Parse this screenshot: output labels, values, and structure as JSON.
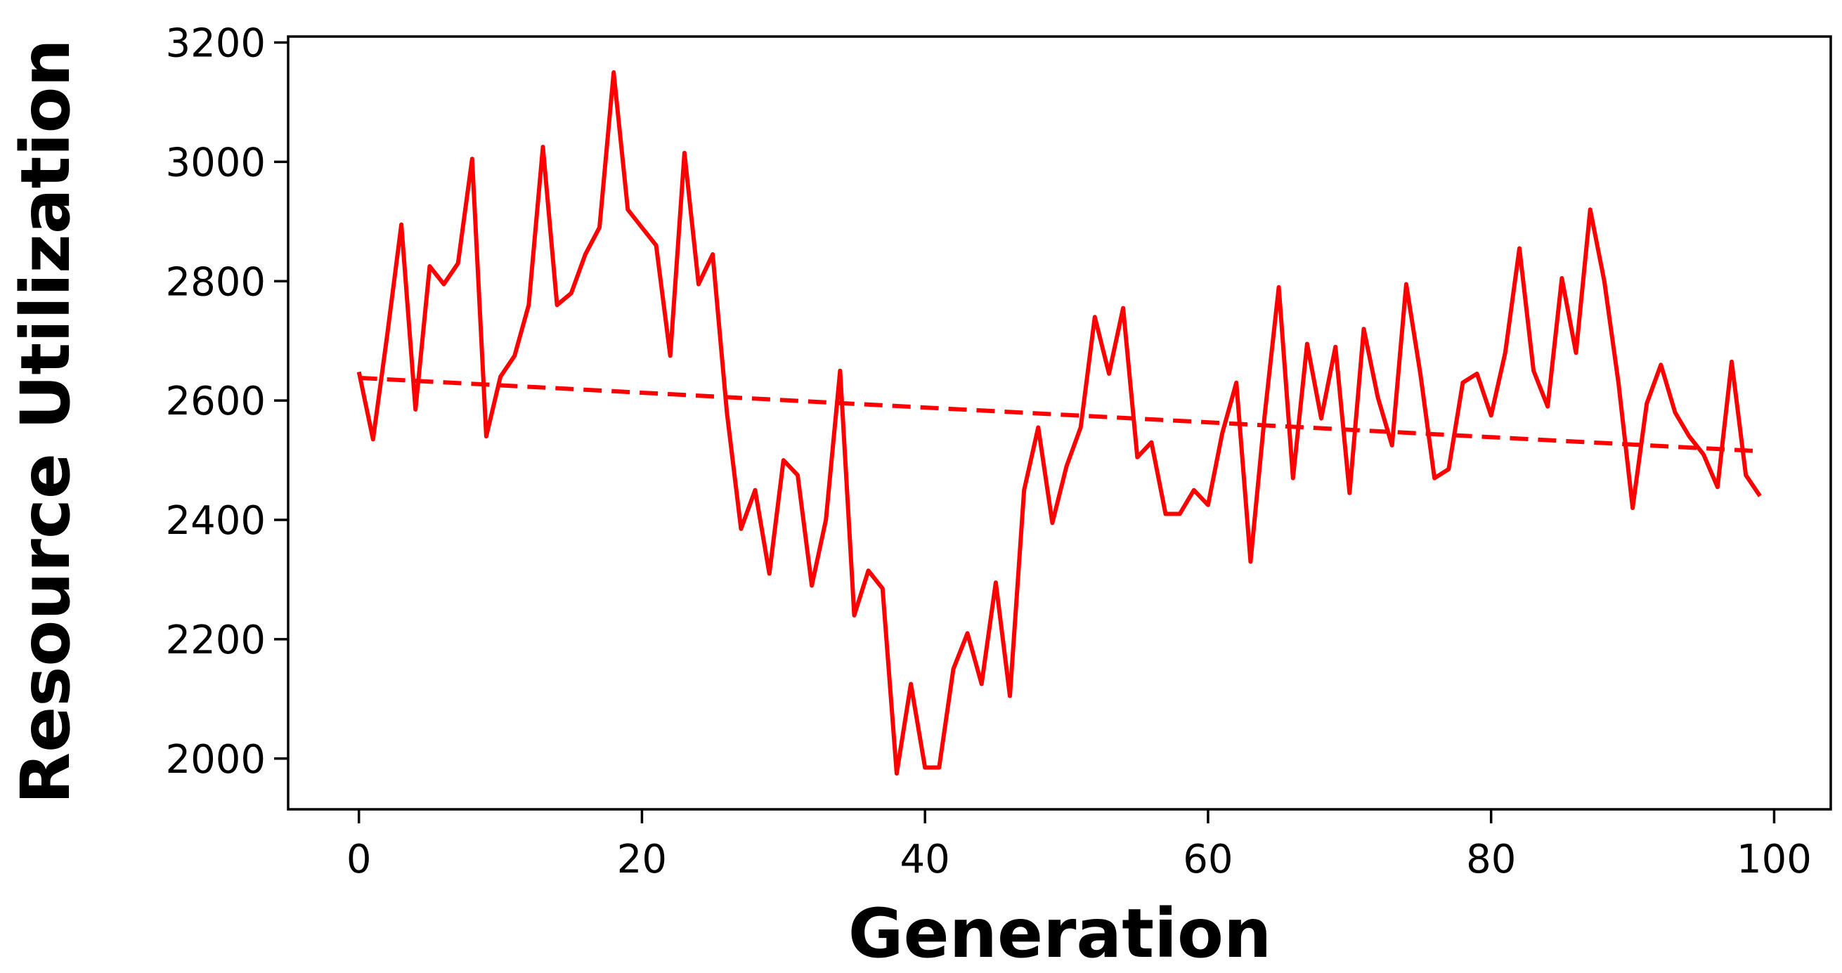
{
  "chart_data": {
    "type": "line",
    "title": "",
    "xlabel": "Generation",
    "ylabel": "Resource Utilization",
    "xlim": [
      -5,
      104
    ],
    "ylim": [
      1915,
      3210
    ],
    "x_ticks": [
      0,
      20,
      40,
      60,
      80,
      100
    ],
    "y_ticks": [
      2000,
      2200,
      2400,
      2600,
      2800,
      3000,
      3200
    ],
    "grid": false,
    "legend": "none",
    "x": [
      0,
      1,
      2,
      3,
      4,
      5,
      6,
      7,
      8,
      9,
      10,
      11,
      12,
      13,
      14,
      15,
      16,
      17,
      18,
      19,
      20,
      21,
      22,
      23,
      24,
      25,
      26,
      27,
      28,
      29,
      30,
      31,
      32,
      33,
      34,
      35,
      36,
      37,
      38,
      39,
      40,
      41,
      42,
      43,
      44,
      45,
      46,
      47,
      48,
      49,
      50,
      51,
      52,
      53,
      54,
      55,
      56,
      57,
      58,
      59,
      60,
      61,
      62,
      63,
      64,
      65,
      66,
      67,
      68,
      69,
      70,
      71,
      72,
      73,
      74,
      75,
      76,
      77,
      78,
      79,
      80,
      81,
      82,
      83,
      84,
      85,
      86,
      87,
      88,
      89,
      90,
      91,
      92,
      93,
      94,
      95,
      96,
      97,
      98,
      99
    ],
    "series": [
      {
        "style": "solid",
        "color": "#ff0000",
        "values": [
          2648,
          2535,
          2710,
          2895,
          2585,
          2825,
          2795,
          2830,
          3005,
          2540,
          2640,
          2675,
          2760,
          3025,
          2760,
          2780,
          2845,
          2890,
          3150,
          2920,
          2890,
          2860,
          2675,
          3015,
          2795,
          2845,
          2580,
          2385,
          2450,
          2310,
          2500,
          2475,
          2290,
          2400,
          2650,
          2240,
          2315,
          2285,
          1975,
          2125,
          1985,
          1985,
          2150,
          2210,
          2125,
          2295,
          2105,
          2450,
          2555,
          2395,
          2490,
          2555,
          2740,
          2645,
          2755,
          2505,
          2530,
          2410,
          2410,
          2450,
          2425,
          2545,
          2630,
          2330,
          2575,
          2790,
          2470,
          2695,
          2570,
          2690,
          2445,
          2720,
          2605,
          2525,
          2795,
          2645,
          2470,
          2485,
          2630,
          2645,
          2575,
          2680,
          2855,
          2650,
          2590,
          2805,
          2680,
          2920,
          2800,
          2630,
          2420,
          2595,
          2660,
          2580,
          2540,
          2510,
          2455,
          2665,
          2475,
          2440
        ]
      },
      {
        "style": "dashed",
        "color": "#ff0000",
        "values_from_to": [
          [
            0,
            2638
          ],
          [
            99,
            2515
          ]
        ]
      }
    ]
  }
}
